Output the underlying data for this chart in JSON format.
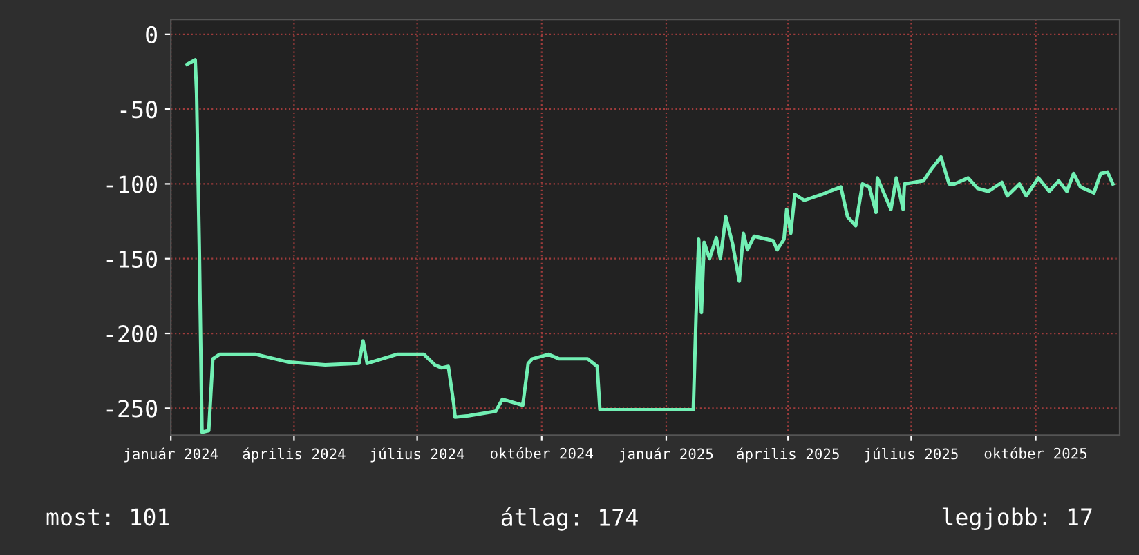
{
  "chart_data": {
    "type": "line",
    "xlim": [
      "2024-01-01",
      "2025-12-02"
    ],
    "xticks": [
      {
        "value": "2024-01-01",
        "label": "január 2024"
      },
      {
        "value": "2024-04-01",
        "label": "április 2024"
      },
      {
        "value": "2024-07-01",
        "label": "július 2024"
      },
      {
        "value": "2024-10-01",
        "label": "október 2024"
      },
      {
        "value": "2025-01-01",
        "label": "január 2025"
      },
      {
        "value": "2025-04-01",
        "label": "április 2025"
      },
      {
        "value": "2025-07-01",
        "label": "július 2025"
      },
      {
        "value": "2025-10-01",
        "label": "október 2025"
      }
    ],
    "ylim": [
      -268,
      10
    ],
    "yticks": [
      0,
      -50,
      -100,
      -150,
      -200,
      -250
    ],
    "grid": true,
    "series": [
      {
        "color": "#72f0b4",
        "x": [
          "2024-01-13",
          "2024-01-19",
          "2024-01-20",
          "2024-01-22",
          "2024-01-24",
          "2024-01-29",
          "2024-02-01",
          "2024-02-06",
          "2024-03-04",
          "2024-03-27",
          "2024-04-24",
          "2024-05-19",
          "2024-05-22",
          "2024-05-25",
          "2024-06-16",
          "2024-07-06",
          "2024-07-14",
          "2024-07-19",
          "2024-07-24",
          "2024-07-28",
          "2024-07-29",
          "2024-08-08",
          "2024-08-28",
          "2024-09-02",
          "2024-09-17",
          "2024-09-21",
          "2024-09-24",
          "2024-10-06",
          "2024-10-14",
          "2024-11-04",
          "2024-11-11",
          "2024-11-13",
          "2024-12-04",
          "2025-01-06",
          "2025-01-21",
          "2025-01-23",
          "2025-01-25",
          "2025-01-27",
          "2025-01-29",
          "2025-02-02",
          "2025-02-07",
          "2025-02-10",
          "2025-02-14",
          "2025-02-19",
          "2025-02-24",
          "2025-02-27",
          "2025-03-02",
          "2025-03-07",
          "2025-03-21",
          "2025-03-24",
          "2025-03-29",
          "2025-03-31",
          "2025-04-03",
          "2025-04-06",
          "2025-04-13",
          "2025-04-26",
          "2025-05-10",
          "2025-05-15",
          "2025-05-21",
          "2025-05-26",
          "2025-05-31",
          "2025-06-05",
          "2025-06-06",
          "2025-06-16",
          "2025-06-20",
          "2025-06-25",
          "2025-06-26",
          "2025-07-10",
          "2025-07-16",
          "2025-07-23",
          "2025-07-29",
          "2025-08-02",
          "2025-08-12",
          "2025-08-19",
          "2025-08-27",
          "2025-09-06",
          "2025-09-10",
          "2025-09-19",
          "2025-09-24",
          "2025-10-03",
          "2025-10-11",
          "2025-10-18",
          "2025-10-24",
          "2025-10-29",
          "2025-11-03",
          "2025-11-13",
          "2025-11-18",
          "2025-11-23",
          "2025-11-27"
        ],
        "values": [
          -20,
          -17,
          -39,
          -141,
          -266,
          -265,
          -217,
          -214,
          -214,
          -219,
          -221,
          -220,
          -205,
          -220,
          -214,
          -214,
          -221,
          -223,
          -222,
          -247,
          -256,
          -255,
          -252,
          -244,
          -248,
          -220,
          -217,
          -214,
          -217,
          -217,
          -222,
          -251,
          -251,
          -251,
          -251,
          -189,
          -137,
          -186,
          -139,
          -150,
          -136,
          -150,
          -122,
          -140,
          -165,
          -133,
          -144,
          -135,
          -138,
          -144,
          -137,
          -117,
          -133,
          -107,
          -111,
          -107,
          -102,
          -122,
          -128,
          -100,
          -102,
          -119,
          -96,
          -117,
          -96,
          -117,
          -100,
          -98,
          -90,
          -82,
          -100,
          -100,
          -96,
          -103,
          -105,
          -99,
          -108,
          -100,
          -108,
          -96,
          -105,
          -98,
          -105,
          -93,
          -102,
          -106,
          -93,
          -92,
          -100
        ]
      }
    ],
    "annotations": [
      "most: 101",
      "átlag: 174",
      "legjobb: 17"
    ]
  }
}
